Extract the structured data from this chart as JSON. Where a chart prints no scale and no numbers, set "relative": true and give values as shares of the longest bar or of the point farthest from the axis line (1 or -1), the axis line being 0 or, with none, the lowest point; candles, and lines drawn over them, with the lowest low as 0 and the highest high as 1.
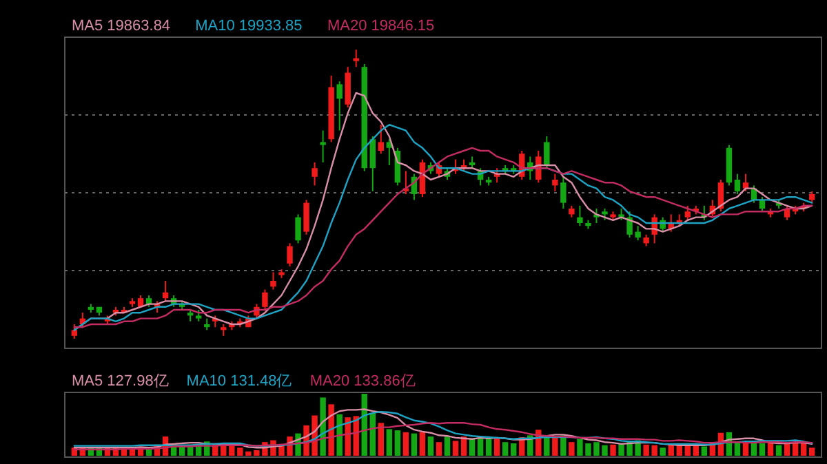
{
  "chart_data": [
    {
      "type": "candlestick",
      "relative": true,
      "grid": true,
      "legend": "top left",
      "categories": [
        null,
        null,
        null,
        null,
        null,
        null,
        null,
        null,
        null,
        null,
        null,
        null,
        null,
        null,
        null,
        null,
        null,
        null,
        null,
        null,
        null,
        null,
        null,
        null,
        null,
        null,
        null,
        null,
        null,
        null,
        null,
        null,
        null,
        null,
        null,
        null,
        null,
        null,
        null,
        null,
        null,
        null,
        null,
        null,
        null,
        null,
        null,
        null,
        null,
        null,
        null,
        null,
        null,
        null,
        null,
        null,
        null,
        null,
        null,
        null,
        null,
        null,
        null,
        null,
        null,
        null,
        null,
        null,
        null,
        null,
        null,
        null,
        null,
        null,
        null,
        null,
        null,
        null,
        null,
        null,
        null,
        null,
        null,
        null,
        null,
        null,
        null,
        null,
        null,
        null
      ],
      "ohlc": [
        [
          0.01,
          0.05,
          0,
          0.03
        ],
        [
          0.05,
          0.09,
          0.04,
          0.07
        ],
        [
          0.11,
          0.12,
          0.09,
          0.1
        ],
        [
          0.11,
          0.11,
          0.08,
          0.09
        ],
        [
          0.06,
          0.08,
          0.05,
          0.07
        ],
        [
          0.09,
          0.11,
          0.08,
          0.1
        ],
        [
          0.09,
          0.11,
          0.09,
          0.1
        ],
        [
          0.12,
          0.14,
          0.11,
          0.13
        ],
        [
          0.11,
          0.15,
          0.11,
          0.14
        ],
        [
          0.14,
          0.15,
          0.11,
          0.12
        ],
        [
          0.11,
          0.13,
          0.09,
          0.12
        ],
        [
          0.14,
          0.2,
          0.13,
          0.16
        ],
        [
          0.14,
          0.15,
          0.11,
          0.12
        ],
        [
          0.12,
          0.13,
          0.1,
          0.11
        ],
        [
          0.09,
          0.1,
          0.06,
          0.08
        ],
        [
          0.08,
          0.1,
          0.06,
          0.07
        ],
        [
          0.05,
          0.07,
          0.03,
          0.04
        ],
        [
          0.06,
          0.08,
          0.04,
          0.07
        ],
        [
          0.03,
          0.05,
          0.01,
          0.04
        ],
        [
          0.04,
          0.06,
          0.03,
          0.05
        ],
        [
          0.05,
          0.07,
          0.04,
          0.06
        ],
        [
          0.04,
          0.08,
          0.04,
          0.07
        ],
        [
          0.08,
          0.12,
          0.07,
          0.11
        ],
        [
          0.11,
          0.17,
          0.1,
          0.16
        ],
        [
          0.18,
          0.23,
          0.17,
          0.2
        ],
        [
          0.22,
          0.24,
          0.21,
          0.23
        ],
        [
          0.26,
          0.33,
          0.25,
          0.32
        ],
        [
          0.42,
          0.43,
          0.33,
          0.34
        ],
        [
          0.37,
          0.48,
          0.36,
          0.47
        ],
        [
          0.56,
          0.61,
          0.53,
          0.59
        ],
        [
          0.68,
          0.72,
          0.61,
          0.67
        ],
        [
          0.69,
          0.91,
          0.68,
          0.87
        ],
        [
          0.88,
          0.89,
          0.72,
          0.83
        ],
        [
          0.81,
          0.94,
          0.8,
          0.92
        ],
        [
          0.96,
          1,
          0.94,
          0.97
        ],
        [
          0.94,
          0.95,
          0.58,
          0.59
        ],
        [
          0.69,
          0.7,
          0.51,
          0.59
        ],
        [
          0.65,
          0.74,
          0.64,
          0.68
        ],
        [
          0.68,
          0.69,
          0.6,
          0.66
        ],
        [
          0.65,
          0.66,
          0.53,
          0.54
        ],
        [
          0.51,
          0.58,
          0.5,
          0.52
        ],
        [
          0.56,
          0.57,
          0.48,
          0.5
        ],
        [
          0.5,
          0.62,
          0.49,
          0.61
        ],
        [
          0.6,
          0.61,
          0.57,
          0.58
        ],
        [
          0.57,
          0.61,
          0.56,
          0.6
        ],
        [
          0.58,
          0.59,
          0.55,
          0.56
        ],
        [
          0.58,
          0.62,
          0.57,
          0.59
        ],
        [
          0.59,
          0.62,
          0.58,
          0.6
        ],
        [
          0.61,
          0.63,
          0.59,
          0.6
        ],
        [
          0.58,
          0.59,
          0.53,
          0.55
        ],
        [
          0.55,
          0.56,
          0.53,
          0.54
        ],
        [
          0.56,
          0.59,
          0.54,
          0.57
        ],
        [
          0.59,
          0.6,
          0.57,
          0.58
        ],
        [
          0.59,
          0.6,
          0.57,
          0.58
        ],
        [
          0.56,
          0.65,
          0.55,
          0.64
        ],
        [
          0.61,
          0.63,
          0.55,
          0.58
        ],
        [
          0.55,
          0.65,
          0.54,
          0.63
        ],
        [
          0.68,
          0.7,
          0.59,
          0.6
        ],
        [
          0.53,
          0.57,
          0.51,
          0.55
        ],
        [
          0.54,
          0.56,
          0.45,
          0.47
        ],
        [
          0.43,
          0.46,
          0.42,
          0.45
        ],
        [
          0.42,
          0.46,
          0.39,
          0.4
        ],
        [
          0.4,
          0.41,
          0.38,
          0.39
        ],
        [
          0.43,
          0.45,
          0.4,
          0.42
        ],
        [
          0.44,
          0.45,
          0.41,
          0.43
        ],
        [
          0.42,
          0.44,
          0.41,
          0.43
        ],
        [
          0.43,
          0.45,
          0.41,
          0.42
        ],
        [
          0.42,
          0.44,
          0.35,
          0.36
        ],
        [
          0.37,
          0.39,
          0.34,
          0.35
        ],
        [
          0.33,
          0.36,
          0.32,
          0.35
        ],
        [
          0.36,
          0.43,
          0.33,
          0.42
        ],
        [
          0.41,
          0.42,
          0.37,
          0.38
        ],
        [
          0.38,
          0.43,
          0.37,
          0.4
        ],
        [
          0.4,
          0.43,
          0.39,
          0.41
        ],
        [
          0.42,
          0.46,
          0.41,
          0.44
        ],
        [
          0.44,
          0.46,
          0.43,
          0.45
        ],
        [
          0.43,
          0.46,
          0.41,
          0.42
        ],
        [
          0.43,
          0.48,
          0.42,
          0.46
        ],
        [
          0.45,
          0.55,
          0.44,
          0.54
        ],
        [
          0.66,
          0.67,
          0.53,
          0.54
        ],
        [
          0.55,
          0.57,
          0.5,
          0.51
        ],
        [
          0.52,
          0.57,
          0.51,
          0.54
        ],
        [
          0.52,
          0.53,
          0.47,
          0.48
        ],
        [
          0.48,
          0.49,
          0.44,
          0.45
        ],
        [
          0.43,
          0.45,
          0.42,
          0.44
        ],
        [
          0.47,
          0.48,
          0.45,
          0.46
        ],
        [
          0.42,
          0.46,
          0.41,
          0.45
        ],
        [
          0.44,
          0.46,
          0.43,
          0.45
        ],
        [
          0.45,
          0.47,
          0.44,
          0.46
        ],
        [
          0.48,
          0.51,
          0.47,
          0.5
        ]
      ],
      "colors": [
        "#f21b1b",
        "#f21b1b",
        "#14a814",
        "#14a814",
        "#f21b1b",
        "#f21b1b",
        "#f21b1b",
        "#f21b1b",
        "#f21b1b",
        "#14a814",
        "#f21b1b",
        "#f21b1b",
        "#14a814",
        "#14a814",
        "#14a814",
        "#14a814",
        "#14a814",
        "#f21b1b",
        "#f21b1b",
        "#f21b1b",
        "#f21b1b",
        "#f21b1b",
        "#f21b1b",
        "#f21b1b",
        "#f21b1b",
        "#f21b1b",
        "#f21b1b",
        "#14a814",
        "#f21b1b",
        "#f21b1b",
        "#14a814",
        "#f21b1b",
        "#14a814",
        "#f21b1b",
        "#f21b1b",
        "#14a814",
        "#14a814",
        "#f21b1b",
        "#14a814",
        "#14a814",
        "#f21b1b",
        "#14a814",
        "#f21b1b",
        "#14a814",
        "#f21b1b",
        "#14a814",
        "#f21b1b",
        "#f21b1b",
        "#14a814",
        "#14a814",
        "#14a814",
        "#f21b1b",
        "#14a814",
        "#14a814",
        "#f21b1b",
        "#14a814",
        "#f21b1b",
        "#14a814",
        "#f21b1b",
        "#14a814",
        "#f21b1b",
        "#14a814",
        "#14a814",
        "#14a814",
        "#14a814",
        "#f21b1b",
        "#14a814",
        "#14a814",
        "#14a814",
        "#f21b1b",
        "#f21b1b",
        "#14a814",
        "#f21b1b",
        "#f21b1b",
        "#f21b1b",
        "#f21b1b",
        "#14a814",
        "#f21b1b",
        "#f21b1b",
        "#14a814",
        "#14a814",
        "#f21b1b",
        "#14a814",
        "#14a814",
        "#f21b1b",
        "#14a814",
        "#f21b1b",
        "#f21b1b",
        "#f21b1b",
        "#f21b1b"
      ],
      "series": [
        {
          "type": "line",
          "name": "MA5 19863.84",
          "color": "#d98fa8",
          "values": [
            0.03,
            0.05,
            0.07,
            0.07,
            0.07,
            0.09,
            0.09,
            0.1,
            0.11,
            0.12,
            0.12,
            0.13,
            0.13,
            0.13,
            0.12,
            0.11,
            0.08,
            0.07,
            0.06,
            0.05,
            0.05,
            0.06,
            0.07,
            0.09,
            0.12,
            0.15,
            0.2,
            0.25,
            0.31,
            0.39,
            0.48,
            0.59,
            0.69,
            0.78,
            0.85,
            0.84,
            0.78,
            0.75,
            0.7,
            0.61,
            0.6,
            0.58,
            0.57,
            0.55,
            0.56,
            0.57,
            0.59,
            0.59,
            0.59,
            0.58,
            0.58,
            0.57,
            0.57,
            0.56,
            0.58,
            0.59,
            0.6,
            0.6,
            0.6,
            0.56,
            0.54,
            0.49,
            0.45,
            0.43,
            0.42,
            0.41,
            0.42,
            0.41,
            0.4,
            0.38,
            0.38,
            0.37,
            0.38,
            0.39,
            0.41,
            0.42,
            0.42,
            0.44,
            0.46,
            0.48,
            0.49,
            0.52,
            0.52,
            0.5,
            0.48,
            0.47,
            0.46,
            0.45,
            0.45,
            0.46
          ]
        },
        {
          "type": "line",
          "name": "MA10 19933.85",
          "color": "#1ea3c4",
          "values": [
            0.03,
            0.05,
            0.07,
            0.07,
            0.07,
            0.06,
            0.07,
            0.09,
            0.09,
            0.1,
            0.11,
            0.11,
            0.12,
            0.12,
            0.12,
            0.12,
            0.11,
            0.1,
            0.1,
            0.09,
            0.08,
            0.07,
            0.07,
            0.08,
            0.09,
            0.1,
            0.13,
            0.16,
            0.2,
            0.26,
            0.32,
            0.4,
            0.47,
            0.55,
            0.62,
            0.66,
            0.69,
            0.72,
            0.74,
            0.73,
            0.72,
            0.68,
            0.66,
            0.63,
            0.59,
            0.59,
            0.59,
            0.58,
            0.57,
            0.57,
            0.58,
            0.58,
            0.58,
            0.58,
            0.58,
            0.59,
            0.59,
            0.59,
            0.58,
            0.57,
            0.57,
            0.55,
            0.53,
            0.52,
            0.49,
            0.48,
            0.46,
            0.43,
            0.42,
            0.4,
            0.4,
            0.4,
            0.4,
            0.4,
            0.4,
            0.4,
            0.4,
            0.41,
            0.43,
            0.45,
            0.46,
            0.47,
            0.48,
            0.48,
            0.48,
            0.48,
            0.49,
            0.49,
            0.48,
            0.47
          ]
        },
        {
          "type": "line",
          "name": "MA20 19846.15",
          "color": "#c22c62",
          "values": [
            0.04,
            0.04,
            0.05,
            0.05,
            0.05,
            0.05,
            0.06,
            0.06,
            0.07,
            0.07,
            0.07,
            0.08,
            0.1,
            0.1,
            0.1,
            0.09,
            0.09,
            0.1,
            0.1,
            0.1,
            0.1,
            0.09,
            0.1,
            0.1,
            0.11,
            0.11,
            0.12,
            0.13,
            0.15,
            0.18,
            0.2,
            0.24,
            0.27,
            0.32,
            0.36,
            0.38,
            0.41,
            0.44,
            0.47,
            0.5,
            0.52,
            0.54,
            0.57,
            0.59,
            0.61,
            0.63,
            0.64,
            0.65,
            0.66,
            0.65,
            0.65,
            0.63,
            0.62,
            0.61,
            0.59,
            0.59,
            0.59,
            0.59,
            0.58,
            0.57,
            0.58,
            0.57,
            0.56,
            0.55,
            0.54,
            0.54,
            0.53,
            0.51,
            0.5,
            0.49,
            0.49,
            0.48,
            0.47,
            0.46,
            0.45,
            0.44,
            0.43,
            0.42,
            0.43,
            0.43,
            0.43,
            0.44,
            0.44,
            0.44,
            0.44,
            0.44,
            0.45,
            0.45,
            0.46,
            0.46
          ]
        }
      ]
    },
    {
      "type": "bar",
      "relative": true,
      "legend": "top left",
      "categories": [
        null,
        null,
        null,
        null,
        null,
        null,
        null,
        null,
        null,
        null,
        null,
        null,
        null,
        null,
        null,
        null,
        null,
        null,
        null,
        null,
        null,
        null,
        null,
        null,
        null,
        null,
        null,
        null,
        null,
        null,
        null,
        null,
        null,
        null,
        null,
        null,
        null,
        null,
        null,
        null,
        null,
        null,
        null,
        null,
        null,
        null,
        null,
        null,
        null,
        null,
        null,
        null,
        null,
        null,
        null,
        null,
        null,
        null,
        null,
        null,
        null,
        null,
        null,
        null,
        null,
        null,
        null,
        null,
        null,
        null,
        null,
        null,
        null,
        null,
        null,
        null,
        null,
        null,
        null,
        null,
        null,
        null,
        null,
        null,
        null,
        null,
        null,
        null,
        null,
        null
      ],
      "values": [
        0.13,
        0.13,
        0.13,
        0.13,
        0.14,
        0.14,
        0.13,
        0.13,
        0.14,
        0.13,
        0.18,
        0.31,
        0.18,
        0.18,
        0.18,
        0.18,
        0.23,
        0.18,
        0.18,
        0.16,
        0.13,
        0.07,
        0.09,
        0.22,
        0.25,
        0.16,
        0.31,
        0.36,
        0.49,
        0.65,
        0.94,
        0.83,
        0.67,
        0.62,
        0.64,
        1,
        0.69,
        0.53,
        0.43,
        0.41,
        0.38,
        0.36,
        0.38,
        0.31,
        0.22,
        0.31,
        0.24,
        0.31,
        0.28,
        0.3,
        0.28,
        0.3,
        0.22,
        0.2,
        0.3,
        0.33,
        0.42,
        0.33,
        0.3,
        0.33,
        0.22,
        0.27,
        0.2,
        0.22,
        0.17,
        0.18,
        0.2,
        0.24,
        0.25,
        0.18,
        0.17,
        0.13,
        0.18,
        0.17,
        0.18,
        0.17,
        0.15,
        0.22,
        0.37,
        0.38,
        0.22,
        0.22,
        0.21,
        0.2,
        0.22,
        0.17,
        0.22,
        0.22,
        0.2,
        0.13
      ],
      "colors": [
        "#f21b1b",
        "#f21b1b",
        "#14a814",
        "#14a814",
        "#f21b1b",
        "#f21b1b",
        "#f21b1b",
        "#f21b1b",
        "#f21b1b",
        "#14a814",
        "#f21b1b",
        "#f21b1b",
        "#14a814",
        "#14a814",
        "#14a814",
        "#14a814",
        "#14a814",
        "#f21b1b",
        "#f21b1b",
        "#f21b1b",
        "#f21b1b",
        "#f21b1b",
        "#f21b1b",
        "#f21b1b",
        "#f21b1b",
        "#f21b1b",
        "#f21b1b",
        "#14a814",
        "#f21b1b",
        "#f21b1b",
        "#14a814",
        "#f21b1b",
        "#14a814",
        "#f21b1b",
        "#f21b1b",
        "#14a814",
        "#14a814",
        "#f21b1b",
        "#14a814",
        "#14a814",
        "#f21b1b",
        "#14a814",
        "#f21b1b",
        "#14a814",
        "#f21b1b",
        "#14a814",
        "#f21b1b",
        "#f21b1b",
        "#14a814",
        "#14a814",
        "#14a814",
        "#f21b1b",
        "#14a814",
        "#14a814",
        "#f21b1b",
        "#14a814",
        "#f21b1b",
        "#14a814",
        "#f21b1b",
        "#14a814",
        "#f21b1b",
        "#14a814",
        "#14a814",
        "#14a814",
        "#14a814",
        "#f21b1b",
        "#14a814",
        "#14a814",
        "#14a814",
        "#f21b1b",
        "#f21b1b",
        "#14a814",
        "#f21b1b",
        "#f21b1b",
        "#f21b1b",
        "#f21b1b",
        "#14a814",
        "#f21b1b",
        "#f21b1b",
        "#14a814",
        "#14a814",
        "#f21b1b",
        "#14a814",
        "#14a814",
        "#f21b1b",
        "#14a814",
        "#f21b1b",
        "#f21b1b",
        "#f21b1b",
        "#f21b1b"
      ],
      "series": [
        {
          "type": "line",
          "name": "MA5 127.98亿",
          "color": "#d98fa8",
          "values": [
            0.13,
            0.13,
            0.13,
            0.13,
            0.13,
            0.13,
            0.13,
            0.13,
            0.14,
            0.13,
            0.14,
            0.18,
            0.19,
            0.2,
            0.21,
            0.21,
            0.19,
            0.19,
            0.19,
            0.19,
            0.18,
            0.14,
            0.13,
            0.13,
            0.15,
            0.16,
            0.21,
            0.26,
            0.31,
            0.39,
            0.55,
            0.65,
            0.72,
            0.74,
            0.74,
            0.75,
            0.72,
            0.7,
            0.66,
            0.61,
            0.49,
            0.42,
            0.39,
            0.37,
            0.33,
            0.32,
            0.29,
            0.28,
            0.27,
            0.29,
            0.28,
            0.29,
            0.28,
            0.26,
            0.26,
            0.27,
            0.29,
            0.32,
            0.34,
            0.34,
            0.32,
            0.29,
            0.26,
            0.25,
            0.22,
            0.21,
            0.19,
            0.2,
            0.21,
            0.21,
            0.21,
            0.19,
            0.18,
            0.17,
            0.17,
            0.17,
            0.17,
            0.18,
            0.22,
            0.26,
            0.27,
            0.28,
            0.28,
            0.25,
            0.21,
            0.2,
            0.2,
            0.21,
            0.21,
            0.19
          ]
        },
        {
          "type": "line",
          "name": "MA10 131.48亿",
          "color": "#1ea3c4",
          "values": [
            0.16,
            0.16,
            0.16,
            0.16,
            0.16,
            0.16,
            0.16,
            0.16,
            0.17,
            0.17,
            0.17,
            0.17,
            0.16,
            0.17,
            0.17,
            0.18,
            0.19,
            0.19,
            0.2,
            0.2,
            0.2,
            0.17,
            0.16,
            0.16,
            0.17,
            0.17,
            0.18,
            0.2,
            0.22,
            0.27,
            0.36,
            0.43,
            0.49,
            0.53,
            0.57,
            0.65,
            0.69,
            0.71,
            0.7,
            0.68,
            0.62,
            0.57,
            0.55,
            0.52,
            0.47,
            0.41,
            0.36,
            0.34,
            0.32,
            0.31,
            0.3,
            0.29,
            0.28,
            0.27,
            0.28,
            0.28,
            0.29,
            0.3,
            0.3,
            0.3,
            0.3,
            0.29,
            0.29,
            0.3,
            0.28,
            0.27,
            0.24,
            0.23,
            0.23,
            0.22,
            0.21,
            0.19,
            0.19,
            0.19,
            0.19,
            0.19,
            0.18,
            0.18,
            0.2,
            0.22,
            0.22,
            0.23,
            0.23,
            0.24,
            0.24,
            0.24,
            0.24,
            0.25,
            0.23,
            0.2
          ]
        },
        {
          "type": "line",
          "name": "MA20 133.86亿",
          "color": "#c22c62",
          "values": [
            0.1,
            0.1,
            0.1,
            0.1,
            0.1,
            0.1,
            0.11,
            0.11,
            0.11,
            0.11,
            0.12,
            0.13,
            0.15,
            0.15,
            0.15,
            0.16,
            0.16,
            0.16,
            0.17,
            0.17,
            0.17,
            0.17,
            0.16,
            0.17,
            0.17,
            0.18,
            0.19,
            0.2,
            0.21,
            0.24,
            0.28,
            0.3,
            0.33,
            0.35,
            0.37,
            0.41,
            0.44,
            0.46,
            0.46,
            0.48,
            0.49,
            0.5,
            0.52,
            0.53,
            0.52,
            0.53,
            0.53,
            0.53,
            0.51,
            0.5,
            0.46,
            0.43,
            0.42,
            0.4,
            0.38,
            0.35,
            0.33,
            0.32,
            0.31,
            0.31,
            0.3,
            0.29,
            0.29,
            0.29,
            0.28,
            0.28,
            0.27,
            0.27,
            0.27,
            0.26,
            0.26,
            0.24,
            0.24,
            0.25,
            0.24,
            0.23,
            0.21,
            0.21,
            0.22,
            0.22,
            0.22,
            0.21,
            0.21,
            0.22,
            0.22,
            0.22,
            0.21,
            0.22,
            0.22,
            0.21
          ]
        }
      ]
    }
  ]
}
